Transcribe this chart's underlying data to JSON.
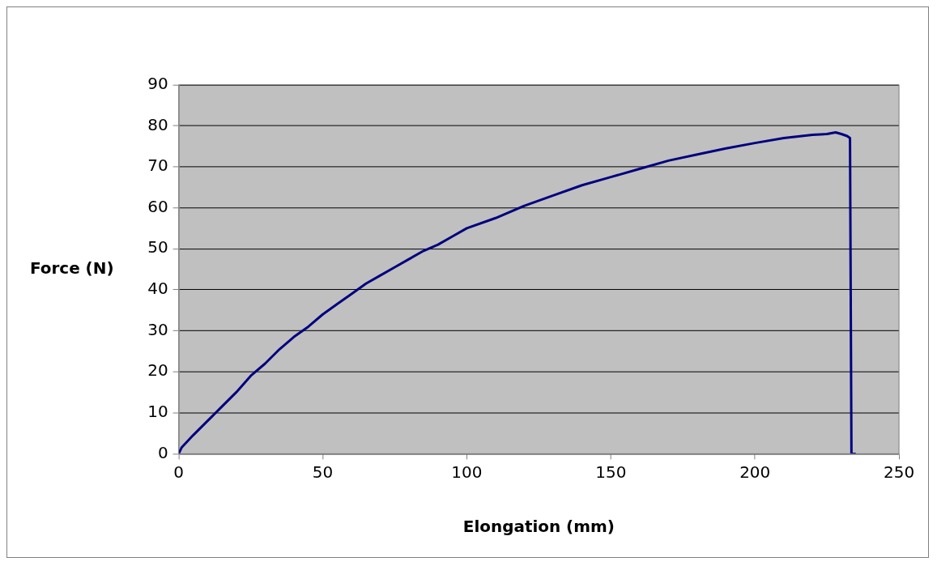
{
  "chart_data": {
    "type": "line",
    "xlabel": "Elongation (mm)",
    "ylabel": "Force (N)",
    "series": [
      {
        "color": "#000080",
        "x": [
          0,
          1,
          5,
          10,
          15,
          20,
          25,
          30,
          35,
          40,
          45,
          50,
          55,
          60,
          65,
          70,
          75,
          80,
          85,
          90,
          95,
          100,
          110,
          120,
          130,
          140,
          150,
          160,
          170,
          180,
          190,
          200,
          210,
          220,
          225,
          228,
          230,
          232,
          233,
          233.5,
          234,
          235
        ],
        "values": [
          0,
          1.5,
          4.5,
          8,
          11.5,
          15,
          19,
          22,
          25.5,
          28.5,
          31,
          34,
          36.5,
          39,
          41.5,
          43.5,
          45.5,
          47.5,
          49.5,
          51,
          53,
          55,
          57.5,
          60.5,
          63,
          65.5,
          67.5,
          69.5,
          71.5,
          73,
          74.5,
          75.8,
          77,
          77.8,
          78,
          78.4,
          78,
          77.5,
          77,
          0,
          0,
          0
        ]
      }
    ],
    "xlim": [
      0,
      250
    ],
    "xticks": [
      0,
      50,
      100,
      150,
      200,
      250
    ],
    "ylim": [
      0,
      90
    ],
    "yticks": [
      0,
      10,
      20,
      30,
      40,
      50,
      60,
      70,
      80,
      90
    ],
    "grid": "y",
    "legend": false,
    "marker": "none",
    "line_style": "solid"
  }
}
